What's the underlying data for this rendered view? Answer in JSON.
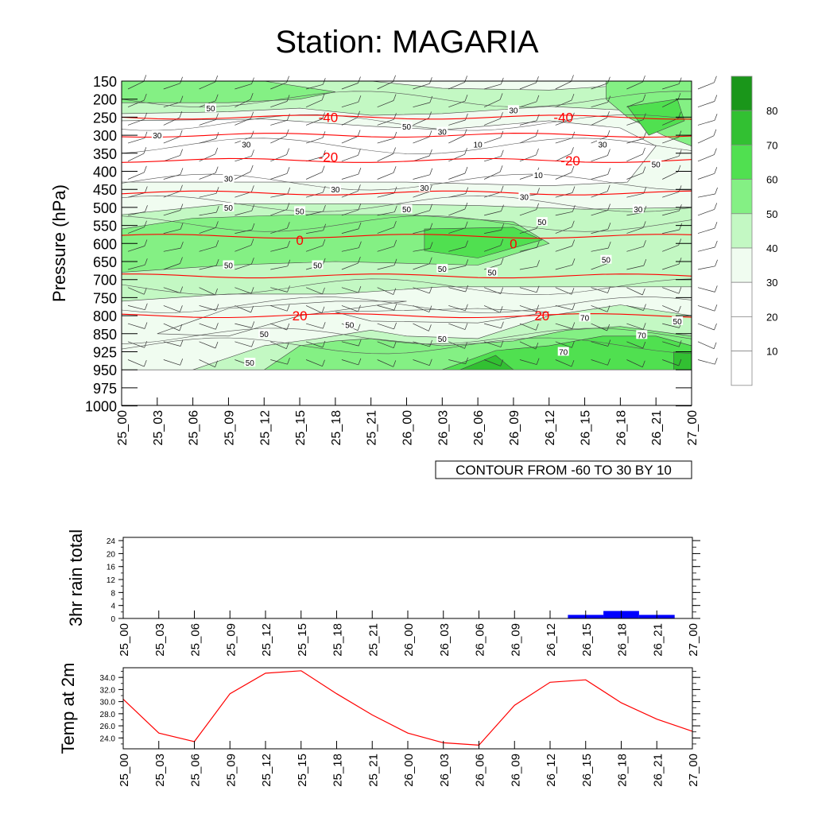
{
  "title": "Station: MAGARIA",
  "info_box": "CONTOUR FROM -60 TO 30 BY 10",
  "colors": {
    "shade": [
      "#ffffff",
      "#ffffff",
      "#ffffff",
      "#f0fcf0",
      "#c3f8c3",
      "#84f084",
      "#50e050",
      "#32c032",
      "#1a961a"
    ],
    "temp_contour": "#ff0000",
    "rain_bar": "#0000ff",
    "temp_line": "#ff0000"
  },
  "chart_data": [
    {
      "type": "heatmap",
      "name": "pressure-time-section",
      "ylabel": "Pressure (hPa)",
      "y_ticks": [
        "150",
        "200",
        "250",
        "300",
        "350",
        "400",
        "450",
        "500",
        "550",
        "600",
        "650",
        "700",
        "750",
        "800",
        "850",
        "925",
        "950",
        "975",
        "1000"
      ],
      "x_ticks": [
        "25_00",
        "25_03",
        "25_06",
        "25_09",
        "25_12",
        "25_15",
        "25_18",
        "25_21",
        "26_00",
        "26_03",
        "26_06",
        "26_09",
        "26_12",
        "26_15",
        "26_18",
        "26_21",
        "27_00"
      ],
      "shading_levels": [
        "10",
        "20",
        "30",
        "40",
        "50",
        "60",
        "70",
        "80"
      ],
      "temperature_contours": [
        {
          "value": -40,
          "pressure": 250
        },
        {
          "value": -30,
          "pressure": 300
        },
        {
          "value": -20,
          "pressure": 370
        },
        {
          "value": -10,
          "pressure": 460
        },
        {
          "value": 0,
          "pressure": 580
        },
        {
          "value": 10,
          "pressure": 690
        },
        {
          "value": 20,
          "pressure": 800
        }
      ],
      "temp_labels": [
        {
          "text": "-40",
          "pressure": 250,
          "time": 5.8
        },
        {
          "text": "-40",
          "pressure": 250,
          "time": 12.4
        },
        {
          "text": "-20",
          "pressure": 360,
          "time": 5.8
        },
        {
          "text": "-20",
          "pressure": 370,
          "time": 12.6
        },
        {
          "text": "0",
          "pressure": 590,
          "time": 5.0
        },
        {
          "text": "0",
          "pressure": 600,
          "time": 11.0
        },
        {
          "text": "20",
          "pressure": 800,
          "time": 5.0
        },
        {
          "text": "20",
          "pressure": 800,
          "time": 11.8
        }
      ],
      "rh_labels": [
        {
          "text": "50",
          "pressure": 225,
          "time": 2.5
        },
        {
          "text": "30",
          "pressure": 230,
          "time": 11.0
        },
        {
          "text": "50",
          "pressure": 275,
          "time": 8.0
        },
        {
          "text": "30",
          "pressure": 300,
          "time": 1.0
        },
        {
          "text": "30",
          "pressure": 290,
          "time": 9.0
        },
        {
          "text": "10",
          "pressure": 325,
          "time": 10.0
        },
        {
          "text": "30",
          "pressure": 325,
          "time": 3.5
        },
        {
          "text": "30",
          "pressure": 325,
          "time": 13.5
        },
        {
          "text": "50",
          "pressure": 380,
          "time": 15.0
        },
        {
          "text": "30",
          "pressure": 420,
          "time": 3.0
        },
        {
          "text": "10",
          "pressure": 410,
          "time": 11.7
        },
        {
          "text": "30",
          "pressure": 450,
          "time": 6.0
        },
        {
          "text": "30",
          "pressure": 445,
          "time": 8.5
        },
        {
          "text": "30",
          "pressure": 470,
          "time": 11.3
        },
        {
          "text": "50",
          "pressure": 500,
          "time": 3.0
        },
        {
          "text": "50",
          "pressure": 510,
          "time": 5.0
        },
        {
          "text": "50",
          "pressure": 505,
          "time": 8.0
        },
        {
          "text": "30",
          "pressure": 505,
          "time": 14.5
        },
        {
          "text": "50",
          "pressure": 540,
          "time": 11.8
        },
        {
          "text": "50",
          "pressure": 660,
          "time": 3.0
        },
        {
          "text": "50",
          "pressure": 660,
          "time": 5.5
        },
        {
          "text": "50",
          "pressure": 670,
          "time": 9.0
        },
        {
          "text": "50",
          "pressure": 680,
          "time": 10.4
        },
        {
          "text": "50",
          "pressure": 645,
          "time": 13.6
        },
        {
          "text": "70",
          "pressure": 805,
          "time": 13.0
        },
        {
          "text": "50",
          "pressure": 815,
          "time": 15.6
        },
        {
          "text": "70",
          "pressure": 855,
          "time": 14.6
        },
        {
          "text": "50",
          "pressure": 825,
          "time": 6.4
        },
        {
          "text": "50",
          "pressure": 850,
          "time": 4.0
        },
        {
          "text": "50",
          "pressure": 870,
          "time": 9.0
        },
        {
          "text": "70",
          "pressure": 925,
          "time": 12.4
        },
        {
          "text": "50",
          "pressure": 940,
          "time": 3.6
        }
      ]
    },
    {
      "type": "bar",
      "name": "rain-3hr",
      "ylabel": "3hr rain total",
      "yticks": [
        "0",
        "4",
        "8",
        "12",
        "16",
        "20",
        "24"
      ],
      "ylim": [
        0,
        25
      ],
      "categories": [
        "25_00",
        "25_03",
        "25_06",
        "25_09",
        "25_12",
        "25_15",
        "25_18",
        "25_21",
        "26_00",
        "26_03",
        "26_06",
        "26_09",
        "26_12",
        "26_15",
        "26_18",
        "26_21",
        "27_00"
      ],
      "values": [
        0,
        0,
        0,
        0,
        0,
        0,
        0,
        0,
        0,
        0,
        0,
        0,
        0,
        1.1,
        2.3,
        1.1,
        0
      ]
    },
    {
      "type": "line",
      "name": "temp-2m",
      "ylabel": "Temp at 2m",
      "yticks": [
        "24.0",
        "26.0",
        "28.0",
        "30.0",
        "32.0",
        "34.0"
      ],
      "ylim": [
        22.2,
        35.6
      ],
      "categories": [
        "25_00",
        "25_03",
        "25_06",
        "25_09",
        "25_12",
        "25_15",
        "25_18",
        "25_21",
        "26_00",
        "26_03",
        "26_06",
        "26_09",
        "26_12",
        "26_15",
        "26_18",
        "26_21",
        "27_00"
      ],
      "values": [
        30.4,
        24.8,
        23.4,
        31.3,
        34.7,
        35.1,
        31.3,
        27.8,
        24.8,
        23.2,
        22.8,
        29.4,
        33.2,
        33.6,
        29.8,
        27.1,
        25.1
      ]
    }
  ]
}
